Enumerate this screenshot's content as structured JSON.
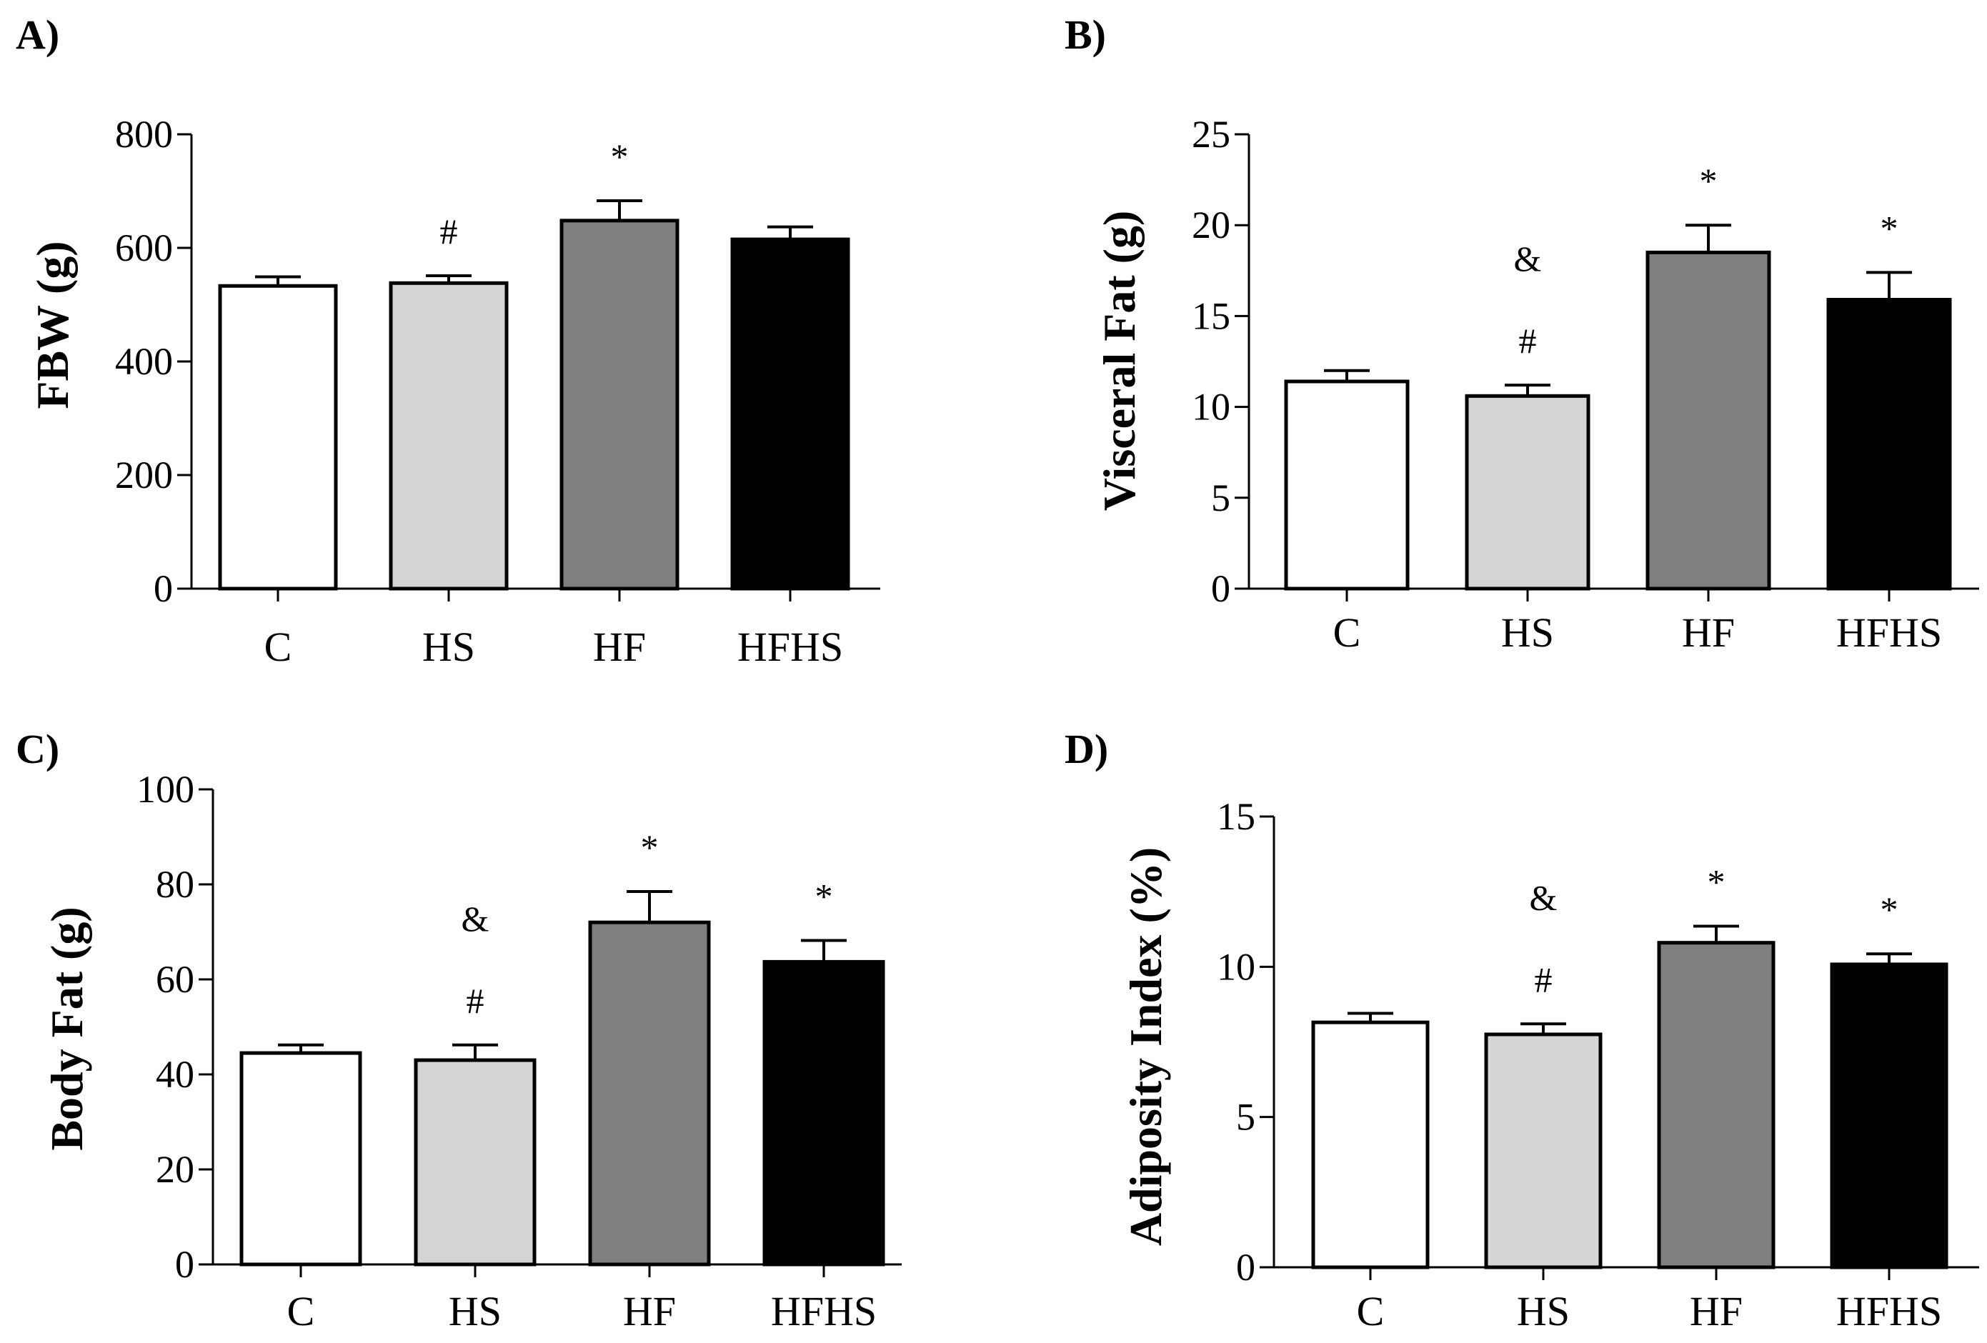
{
  "figure": {
    "title": ""
  },
  "chart_data": [
    {
      "panel": "A)",
      "type": "bar",
      "title": "",
      "xlabel": "",
      "ylabel": "FBW (g)",
      "ylim": [
        0,
        800
      ],
      "yticks": [
        0,
        200,
        400,
        600,
        800
      ],
      "categories": [
        "C",
        "HS",
        "HF",
        "HFHS"
      ],
      "values": [
        533,
        538,
        648,
        615
      ],
      "errors": [
        16,
        13,
        35,
        22
      ],
      "annotations": [
        "",
        "#",
        "*",
        ""
      ],
      "colors": [
        "#ffffff",
        "#d4d4d4",
        "#7f7f7f",
        "#000000"
      ]
    },
    {
      "panel": "B)",
      "type": "bar",
      "title": "",
      "xlabel": "",
      "ylabel": "Visceral Fat (g)",
      "ylim": [
        0,
        25
      ],
      "yticks": [
        0,
        5,
        10,
        15,
        20,
        25
      ],
      "categories": [
        "C",
        "HS",
        "HF",
        "HFHS"
      ],
      "values": [
        11.4,
        10.6,
        18.5,
        15.9
      ],
      "errors": [
        0.6,
        0.6,
        1.5,
        1.5
      ],
      "annotations": [
        "",
        "&\n#",
        "*",
        "*"
      ],
      "colors": [
        "#ffffff",
        "#d4d4d4",
        "#7f7f7f",
        "#000000"
      ]
    },
    {
      "panel": "C)",
      "type": "bar",
      "title": "",
      "xlabel": "",
      "ylabel": "Body Fat (g)",
      "ylim": [
        0,
        100
      ],
      "yticks": [
        0,
        20,
        40,
        60,
        80,
        100
      ],
      "categories": [
        "C",
        "HS",
        "HF",
        "HFHS"
      ],
      "values": [
        44.5,
        43,
        72,
        63.7
      ],
      "errors": [
        1.7,
        3.2,
        6.5,
        4.5
      ],
      "annotations": [
        "",
        "&\n#",
        "*",
        "*"
      ],
      "colors": [
        "#ffffff",
        "#d4d4d4",
        "#7f7f7f",
        "#000000"
      ]
    },
    {
      "panel": "D)",
      "type": "bar",
      "title": "",
      "xlabel": "",
      "ylabel": "Adiposity Index (%)",
      "ylim": [
        0,
        15
      ],
      "yticks": [
        0,
        5,
        10,
        15
      ],
      "categories": [
        "C",
        "HS",
        "HF",
        "HFHS"
      ],
      "values": [
        8.15,
        7.75,
        10.8,
        10.08
      ],
      "errors": [
        0.3,
        0.35,
        0.55,
        0.35
      ],
      "annotations": [
        "",
        "&\n#",
        "*",
        "*"
      ],
      "colors": [
        "#ffffff",
        "#d4d4d4",
        "#7f7f7f",
        "#000000"
      ]
    }
  ]
}
